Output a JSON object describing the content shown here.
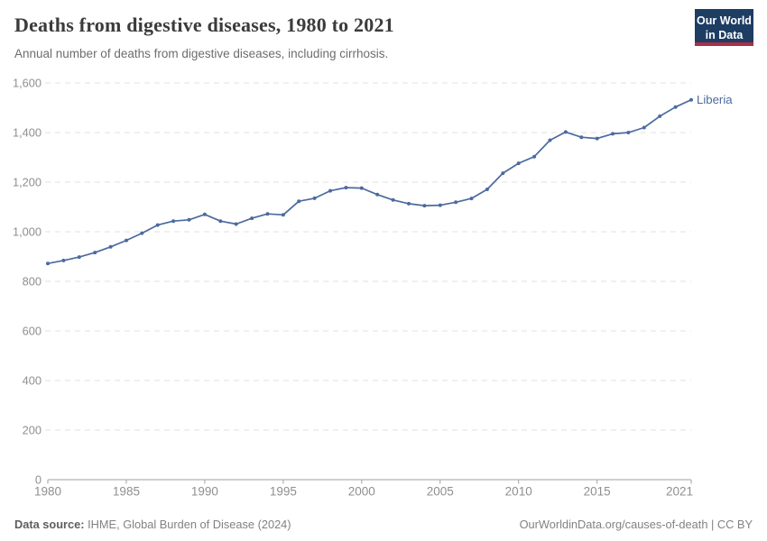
{
  "header": {
    "title": "Deaths from digestive diseases, 1980 to 2021",
    "subtitle": "Annual number of deaths from digestive diseases, including cirrhosis.",
    "logo": {
      "line1": "Our World",
      "line2": "in Data",
      "bg_color": "#1d3d63",
      "stripe_color": "#a92e47"
    }
  },
  "chart_data": {
    "type": "line",
    "title": "Deaths from digestive diseases, 1980 to 2021",
    "xlabel": "",
    "ylabel": "",
    "xlim": [
      1980,
      2021
    ],
    "ylim": [
      0,
      1600
    ],
    "grid": "horizontal-dashed",
    "legend_position": "end-of-line-label",
    "x_ticks": [
      1980,
      1985,
      1990,
      1995,
      2000,
      2005,
      2010,
      2015,
      2021
    ],
    "y_ticks": [
      0,
      200,
      400,
      600,
      800,
      1000,
      1200,
      1400,
      1600
    ],
    "y_tick_labels": [
      "0",
      "200",
      "400",
      "600",
      "800",
      "1,000",
      "1,200",
      "1,400",
      "1,600"
    ],
    "years": [
      1980,
      1981,
      1982,
      1983,
      1984,
      1985,
      1986,
      1987,
      1988,
      1989,
      1990,
      1991,
      1992,
      1993,
      1994,
      1995,
      1996,
      1997,
      1998,
      1999,
      2000,
      2001,
      2002,
      2003,
      2004,
      2005,
      2006,
      2007,
      2008,
      2009,
      2010,
      2011,
      2012,
      2013,
      2014,
      2015,
      2016,
      2017,
      2018,
      2019,
      2020,
      2021
    ],
    "series": [
      {
        "name": "Liberia",
        "color": "#4c6a9e",
        "values": [
          872,
          884,
          898,
          916,
          939,
          965,
          994,
          1027,
          1043,
          1048,
          1070,
          1043,
          1031,
          1054,
          1072,
          1068,
          1123,
          1135,
          1165,
          1178,
          1176,
          1150,
          1128,
          1113,
          1105,
          1107,
          1119,
          1134,
          1171,
          1236,
          1276,
          1303,
          1369,
          1402,
          1381,
          1376,
          1395,
          1400,
          1420,
          1466,
          1503,
          1532
        ]
      }
    ],
    "colors": {
      "gridline": "#e0e0e0",
      "axis": "#a1a1a1",
      "tick_label": "#8f8f8f"
    }
  },
  "footer": {
    "source_label": "Data source:",
    "source_text": " IHME, Global Burden of Disease (2024)",
    "credit": "OurWorldinData.org/causes-of-death | CC BY"
  }
}
